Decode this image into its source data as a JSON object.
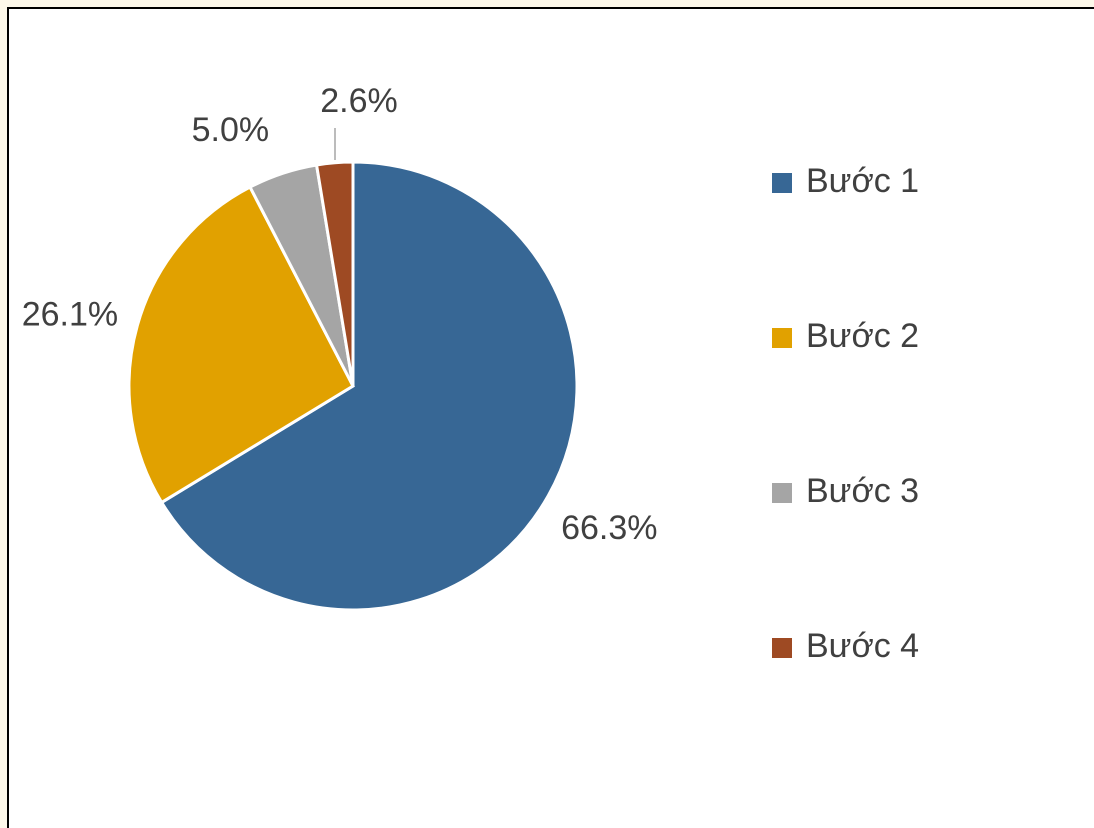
{
  "chart_data": {
    "type": "pie",
    "categories": [
      "Bước 1",
      "Bước 2",
      "Bước 3",
      "Bước 4"
    ],
    "values": [
      66.3,
      26.1,
      5.0,
      2.6
    ],
    "value_labels": [
      "66.3%",
      "26.1%",
      "5.0%",
      "2.6%"
    ],
    "colors": [
      "#376795",
      "#e1a100",
      "#a5a5a5",
      "#9e4a23"
    ],
    "legend": "right"
  }
}
